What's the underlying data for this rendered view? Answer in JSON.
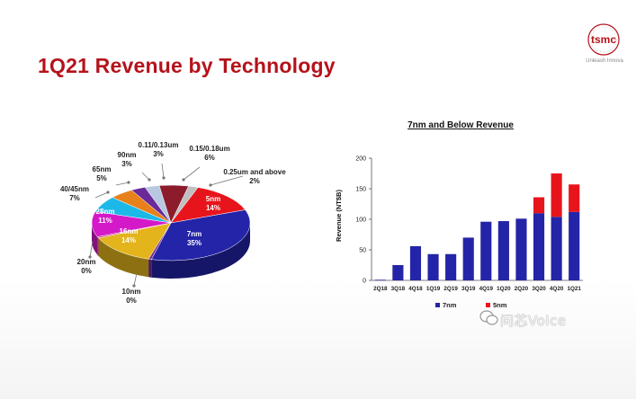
{
  "slide": {
    "title": "1Q21 Revenue by Technology",
    "logo_text": "tsmc",
    "logo_tagline": "Unleash Innova",
    "watermark": "问芯Voice"
  },
  "colors": {
    "title": "#b5121b",
    "bar_7nm": "#2424a8",
    "bar_5nm": "#e8141c"
  },
  "chart_data": [
    {
      "type": "pie",
      "title": "",
      "slices": [
        {
          "name": "5nm",
          "value": 14,
          "label": "5nm",
          "pct_label": "14%",
          "color": "#e8141c"
        },
        {
          "name": "7nm",
          "value": 35,
          "label": "7nm",
          "pct_label": "35%",
          "color": "#2424a8"
        },
        {
          "name": "10nm",
          "value": 0,
          "label": "10nm",
          "pct_label": "0%",
          "color": "#7b2a8c"
        },
        {
          "name": "16nm",
          "value": 14,
          "label": "16nm",
          "pct_label": "14%",
          "color": "#e3b41c"
        },
        {
          "name": "20nm",
          "value": 0,
          "label": "20nm",
          "pct_label": "0%",
          "color": "#c93c8c"
        },
        {
          "name": "28nm",
          "value": 11,
          "label": "28nm",
          "pct_label": "11%",
          "color": "#d419c8"
        },
        {
          "name": "40/45nm",
          "value": 7,
          "label": "40/45nm",
          "pct_label": "7%",
          "color": "#1cb8e8"
        },
        {
          "name": "65nm",
          "value": 5,
          "label": "65nm",
          "pct_label": "5%",
          "color": "#e8801c"
        },
        {
          "name": "90nm",
          "value": 3,
          "label": "90nm",
          "pct_label": "3%",
          "color": "#6a2a9a"
        },
        {
          "name": "0.11/0.13um",
          "value": 3,
          "label": "0.11/0.13um",
          "pct_label": "3%",
          "color": "#b8c8e0"
        },
        {
          "name": "0.15/0.18um",
          "value": 6,
          "label": "0.15/0.18um",
          "pct_label": "6%",
          "color": "#8c1c2c"
        },
        {
          "name": "0.25um and above",
          "value": 2,
          "label": "0.25um and above",
          "pct_label": "2%",
          "color": "#c0c0c0"
        }
      ]
    },
    {
      "type": "bar",
      "stacked": true,
      "title": "7nm and Below Revenue",
      "xlabel": "",
      "ylabel": "Revenue (NT$B)",
      "ylim": [
        0,
        200
      ],
      "yticks": [
        0,
        50,
        100,
        150,
        200
      ],
      "categories": [
        "2Q18",
        "3Q18",
        "4Q18",
        "1Q19",
        "2Q19",
        "3Q19",
        "4Q19",
        "1Q20",
        "2Q20",
        "3Q20",
        "4Q20",
        "1Q21"
      ],
      "series": [
        {
          "name": "7nm",
          "color": "#2424a8",
          "values": [
            1,
            25,
            56,
            43,
            43,
            70,
            96,
            97,
            101,
            110,
            104,
            112
          ]
        },
        {
          "name": "5nm",
          "color": "#e8141c",
          "values": [
            0,
            0,
            0,
            0,
            0,
            0,
            0,
            0,
            0,
            26,
            71,
            45
          ]
        }
      ],
      "legend": [
        "7nm",
        "5nm"
      ],
      "legend_position": "bottom"
    }
  ]
}
